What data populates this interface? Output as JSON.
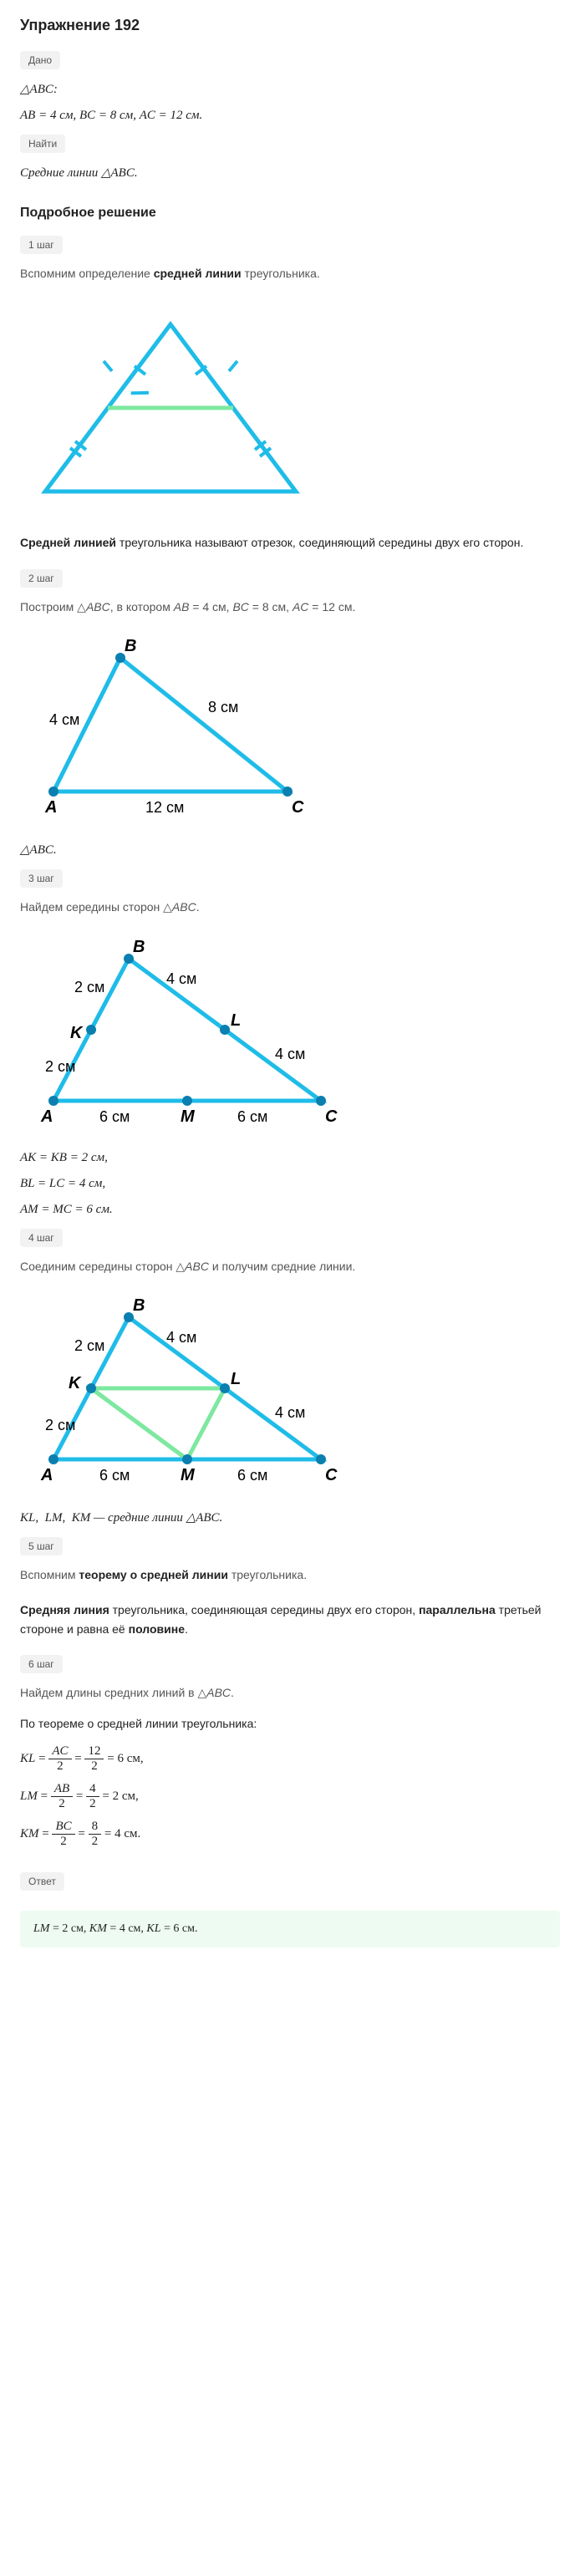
{
  "title": "Упражнение 192",
  "given_tag": "Дано",
  "given_line1_html": "△<i>ABC</i>:",
  "given_line2_html": "<i>AB</i> = 4 см, <i>BC</i> = 8 см, <i>AC</i> = 12 см.",
  "find_tag": "Найти",
  "find_line_html": "Средние линии △<i>ABC</i>.",
  "solution_heading": "Подробное решение",
  "steps": {
    "s1": {
      "tag": "1 шаг",
      "text_html": "Вспомним определение <b>средней линии</b> треугольника."
    },
    "s2": {
      "tag": "2 шаг",
      "text_html": "Построим △<i>ABC</i>, в котором <i>AB</i> = 4 см, <i>BC</i> = 8 см, <i>AC</i> = 12 см."
    },
    "s3": {
      "tag": "3 шаг",
      "text_html": "Найдем середины сторон △<i>ABC</i>."
    },
    "s4": {
      "tag": "4 шаг",
      "text_html": "Соединим середины сторон △<i>ABC</i> и получим средние линии."
    },
    "s5": {
      "tag": "5 шаг",
      "text_html": "Вспомним <b>теорему о средней линии</b> треугольника."
    },
    "s6": {
      "tag": "6 шаг",
      "text_html": "Найдем длины средних линий в △<i>ABC</i>."
    }
  },
  "definition_html": "<b>Средней линией</b> треугольника называют отрезок, соединяющий середины двух его сторон.",
  "triangle_caption_html": "△<i>ABC</i>.",
  "midpoints": {
    "l1_html": "<i>AK</i> = <i>KB</i> = 2 см,",
    "l2_html": "<i>BL</i> = <i>LC</i> = 4 см,",
    "l3_html": "<i>AM</i> = <i>MC</i> = 6 см."
  },
  "midlines_caption_html": "<i>KL</i>, &nbsp;<i>LM</i>, &nbsp;<i>KM</i> — средние линии △<i>ABC</i>.",
  "theorem_html": "<b>Средняя линия</b> треугольника, соединяющая середины двух его сторон, <b>параллельна</b> третьей стороне и равна её <b>половине</b>.",
  "theorem_intro": "По теореме о средней линии треугольника:",
  "formulas": {
    "kl": {
      "lhs": "KL",
      "num": "AC",
      "den": "2",
      "num2": "12",
      "den2": "2",
      "res": "6 см,"
    },
    "lm": {
      "lhs": "LM",
      "num": "AB",
      "den": "2",
      "num2": "4",
      "den2": "2",
      "res": "2 см,"
    },
    "km": {
      "lhs": "KM",
      "num": "BC",
      "den": "2",
      "num2": "8",
      "den2": "2",
      "res": "4 см."
    }
  },
  "answer_tag": "Ответ",
  "answer_html": "<i>LM</i> = 2 см, <i>KM</i> = 4 см, <i>KL</i> = 6 см.",
  "colors": {
    "triangle_stroke": "#1fbce8",
    "midline_stroke": "#7de89f",
    "dot_fill": "#0a7fb0",
    "text": "#222222"
  },
  "fig1": {
    "tick_color": "#1fbce8"
  },
  "fig2": {
    "labels": {
      "A": "A",
      "B": "B",
      "C": "C",
      "AB": "4 см",
      "BC": "8 см",
      "AC": "12 см"
    }
  },
  "fig3": {
    "labels": {
      "A": "A",
      "B": "B",
      "C": "C",
      "K": "K",
      "L": "L",
      "M": "M",
      "AK": "2 см",
      "KB": "2 см",
      "BL": "4 см",
      "LC": "4 см",
      "AM": "6 см",
      "MC": "6 см"
    }
  },
  "fig4": {
    "labels": {
      "A": "A",
      "B": "B",
      "C": "C",
      "K": "K",
      "L": "L",
      "M": "M",
      "AK": "2 см",
      "KB": "2 см",
      "BL": "4 см",
      "LC": "4 см",
      "AM": "6 см",
      "MC": "6 см"
    }
  }
}
